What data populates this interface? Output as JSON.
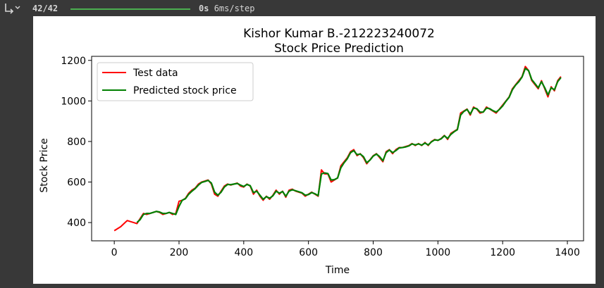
{
  "output": {
    "icon": "output-toggle-icon",
    "progress_count": "42/42",
    "progress": 1.0,
    "time_bold": "0s",
    "time_rest": "6ms/step"
  },
  "chart_data": {
    "type": "line",
    "title": "Kishor Kumar B.-212223240072",
    "subtitle": "Stock Price Prediction",
    "xlabel": "Time",
    "ylabel": "Stock Price",
    "xlim": [
      -70,
      1450
    ],
    "ylim": [
      310,
      1220
    ],
    "xticks": [
      0,
      200,
      400,
      600,
      800,
      1000,
      1200,
      1400
    ],
    "yticks": [
      400,
      600,
      800,
      1000,
      1200
    ],
    "grid": false,
    "legend_position": "top-left",
    "colors": {
      "test": "#ff0000",
      "predicted": "#008000"
    },
    "series": [
      {
        "name": "Test data",
        "color": "#ff0000",
        "x": [
          0,
          10,
          20,
          30,
          40,
          50,
          60,
          70,
          80,
          90,
          100,
          110,
          120,
          130,
          140,
          150,
          160,
          170,
          180,
          190,
          200,
          210,
          220,
          230,
          240,
          250,
          260,
          270,
          280,
          290,
          300,
          310,
          320,
          330,
          340,
          350,
          360,
          370,
          380,
          390,
          400,
          410,
          420,
          430,
          440,
          450,
          460,
          470,
          480,
          490,
          500,
          510,
          520,
          530,
          540,
          550,
          560,
          570,
          580,
          590,
          600,
          610,
          620,
          630,
          640,
          650,
          660,
          670,
          680,
          690,
          700,
          710,
          720,
          730,
          740,
          750,
          760,
          770,
          780,
          790,
          800,
          810,
          820,
          830,
          840,
          850,
          860,
          870,
          880,
          890,
          900,
          910,
          920,
          930,
          940,
          950,
          960,
          970,
          980,
          990,
          1000,
          1010,
          1020,
          1030,
          1040,
          1050,
          1060,
          1070,
          1080,
          1090,
          1100,
          1110,
          1120,
          1130,
          1140,
          1150,
          1160,
          1170,
          1180,
          1190,
          1200,
          1210,
          1220,
          1230,
          1240,
          1250,
          1260,
          1270,
          1280,
          1290,
          1300,
          1310,
          1320,
          1330,
          1340,
          1350,
          1360,
          1370,
          1380
        ],
        "y": [
          360,
          370,
          380,
          395,
          410,
          405,
          400,
          395,
          420,
          445,
          440,
          445,
          450,
          455,
          450,
          440,
          445,
          450,
          440,
          445,
          505,
          510,
          520,
          545,
          560,
          570,
          590,
          600,
          605,
          610,
          590,
          540,
          530,
          555,
          580,
          590,
          585,
          590,
          595,
          580,
          575,
          590,
          580,
          540,
          560,
          530,
          510,
          530,
          515,
          535,
          560,
          540,
          555,
          525,
          560,
          565,
          555,
          550,
          545,
          530,
          540,
          550,
          540,
          530,
          660,
          640,
          640,
          600,
          610,
          620,
          680,
          700,
          720,
          750,
          760,
          730,
          740,
          720,
          690,
          710,
          730,
          740,
          720,
          700,
          750,
          760,
          740,
          760,
          770,
          770,
          775,
          780,
          790,
          780,
          790,
          780,
          795,
          780,
          800,
          810,
          805,
          815,
          830,
          810,
          840,
          850,
          860,
          940,
          950,
          960,
          930,
          970,
          960,
          940,
          945,
          970,
          960,
          950,
          940,
          960,
          980,
          1000,
          1020,
          1060,
          1080,
          1100,
          1120,
          1170,
          1150,
          1100,
          1080,
          1060,
          1100,
          1060,
          1020,
          1070,
          1050,
          1100,
          1120
        ]
      },
      {
        "name": "Predicted stock price",
        "color": "#008000",
        "x": [
          70,
          80,
          90,
          100,
          110,
          120,
          130,
          140,
          150,
          160,
          170,
          180,
          190,
          200,
          210,
          220,
          230,
          240,
          250,
          260,
          270,
          280,
          290,
          300,
          310,
          320,
          330,
          340,
          350,
          360,
          370,
          380,
          390,
          400,
          410,
          420,
          430,
          440,
          450,
          460,
          470,
          480,
          490,
          500,
          510,
          520,
          530,
          540,
          550,
          560,
          570,
          580,
          590,
          600,
          610,
          620,
          630,
          640,
          650,
          660,
          670,
          680,
          690,
          700,
          710,
          720,
          730,
          740,
          750,
          760,
          770,
          780,
          790,
          800,
          810,
          820,
          830,
          840,
          850,
          860,
          870,
          880,
          890,
          900,
          910,
          920,
          930,
          940,
          950,
          960,
          970,
          980,
          990,
          1000,
          1010,
          1020,
          1030,
          1040,
          1050,
          1060,
          1070,
          1080,
          1090,
          1100,
          1110,
          1120,
          1130,
          1140,
          1150,
          1160,
          1170,
          1180,
          1190,
          1200,
          1210,
          1220,
          1230,
          1240,
          1250,
          1260,
          1270,
          1280,
          1290,
          1300,
          1310,
          1320,
          1330,
          1340,
          1350,
          1360,
          1370,
          1380
        ],
        "y": [
          400,
          415,
          440,
          445,
          445,
          450,
          455,
          452,
          445,
          445,
          450,
          445,
          440,
          480,
          510,
          518,
          540,
          555,
          568,
          585,
          598,
          603,
          608,
          595,
          550,
          535,
          550,
          575,
          588,
          587,
          590,
          593,
          585,
          578,
          588,
          582,
          548,
          555,
          535,
          515,
          528,
          520,
          532,
          555,
          545,
          553,
          530,
          555,
          562,
          557,
          552,
          547,
          535,
          538,
          548,
          542,
          533,
          640,
          645,
          642,
          610,
          612,
          620,
          670,
          695,
          715,
          745,
          755,
          735,
          738,
          725,
          695,
          708,
          728,
          738,
          725,
          705,
          745,
          758,
          745,
          755,
          768,
          770,
          773,
          778,
          788,
          783,
          788,
          782,
          792,
          783,
          798,
          808,
          806,
          813,
          828,
          815,
          835,
          848,
          858,
          930,
          948,
          958,
          935,
          965,
          962,
          945,
          945,
          965,
          962,
          952,
          945,
          958,
          975,
          998,
          1018,
          1055,
          1078,
          1095,
          1118,
          1160,
          1150,
          1105,
          1085,
          1065,
          1095,
          1065,
          1030,
          1065,
          1055,
          1095,
          1115
        ]
      }
    ]
  }
}
